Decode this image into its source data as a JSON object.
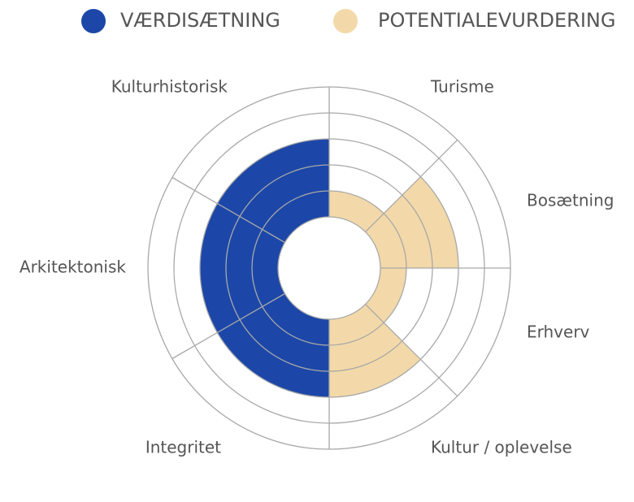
{
  "chart_data": {
    "type": "polar-bar",
    "series": [
      {
        "name": "VÆRDISÆTNING",
        "color": "#1c47a8",
        "categories": [
          "Kulturhistorisk",
          "Arkitektonisk",
          "Integritet"
        ],
        "values": [
          3,
          3,
          3
        ]
      },
      {
        "name": "POTENTIALEVURDERING",
        "color": "#f3d9a9",
        "categories": [
          "Turisme",
          "Bosætning",
          "Erhverv",
          "Kultur / oplevelse"
        ],
        "values": [
          1,
          3,
          1,
          3
        ]
      }
    ],
    "rlim": [
      0,
      5
    ],
    "rticks": [
      0,
      1,
      2,
      3,
      4,
      5
    ],
    "grid": true
  }
}
